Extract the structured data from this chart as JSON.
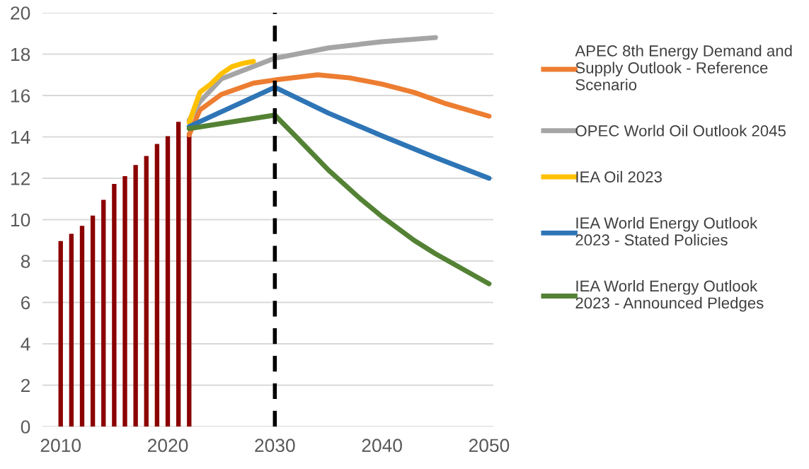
{
  "chart_data": {
    "type": "line",
    "xlim": [
      2008.3,
      2050.4
    ],
    "xticks": [
      2010,
      2020,
      2030,
      2040,
      2050
    ],
    "ylim": [
      0,
      20
    ],
    "yticks": [
      0,
      2,
      4,
      6,
      8,
      10,
      12,
      14,
      16,
      18,
      20
    ],
    "grid": "y",
    "legend": "right",
    "ref_lines": [
      {
        "axis": "x",
        "value": 2030,
        "color": "#000000",
        "line_style": "dashed"
      }
    ],
    "series": [
      {
        "type": "bar",
        "color": "#8b0000",
        "x": [
          2010,
          2011,
          2012,
          2013,
          2014,
          2015,
          2016,
          2017,
          2018,
          2019,
          2020,
          2021,
          2022
        ],
        "values": [
          8.97,
          9.32,
          9.7,
          10.2,
          10.96,
          11.73,
          12.1,
          12.64,
          13.08,
          13.66,
          14.03,
          14.73,
          14.2
        ]
      },
      {
        "name": "APEC 8th Energy Demand and Supply Outlook - Reference Scenario",
        "color": "#ed7d31",
        "x": [
          2022,
          2023,
          2025,
          2028,
          2030,
          2034,
          2037,
          2040,
          2043,
          2046,
          2050
        ],
        "values": [
          14.1,
          15.3,
          16.05,
          16.6,
          16.75,
          17.0,
          16.85,
          16.55,
          16.15,
          15.6,
          15.0
        ]
      },
      {
        "name": "OPEC World Oil Outlook 2045",
        "color": "#a5a5a5",
        "x": [
          2022,
          2023,
          2025,
          2030,
          2035,
          2040,
          2045
        ],
        "values": [
          14.8,
          15.7,
          16.8,
          17.8,
          18.3,
          18.6,
          18.8
        ]
      },
      {
        "name": "IEA Oil 2023",
        "color": "#ffc000",
        "x": [
          2022,
          2023,
          2024,
          2025,
          2026,
          2027,
          2028
        ],
        "values": [
          14.7,
          16.15,
          16.55,
          17.05,
          17.4,
          17.55,
          17.65
        ]
      },
      {
        "name": "IEA World Energy Outlook 2023 - Stated Policies",
        "color": "#2e75b6",
        "x": [
          2022,
          2030,
          2035,
          2040,
          2045,
          2050
        ],
        "values": [
          14.5,
          16.4,
          15.15,
          14.05,
          13.0,
          12.0
        ]
      },
      {
        "name": "IEA World Energy Outlook 2023 - Announced Pledges",
        "color": "#548235",
        "x": [
          2022,
          2030,
          2032,
          2035,
          2038,
          2040,
          2043,
          2045,
          2050
        ],
        "values": [
          14.4,
          15.05,
          14.0,
          12.4,
          11.0,
          10.15,
          9.0,
          8.35,
          6.9
        ]
      }
    ]
  }
}
